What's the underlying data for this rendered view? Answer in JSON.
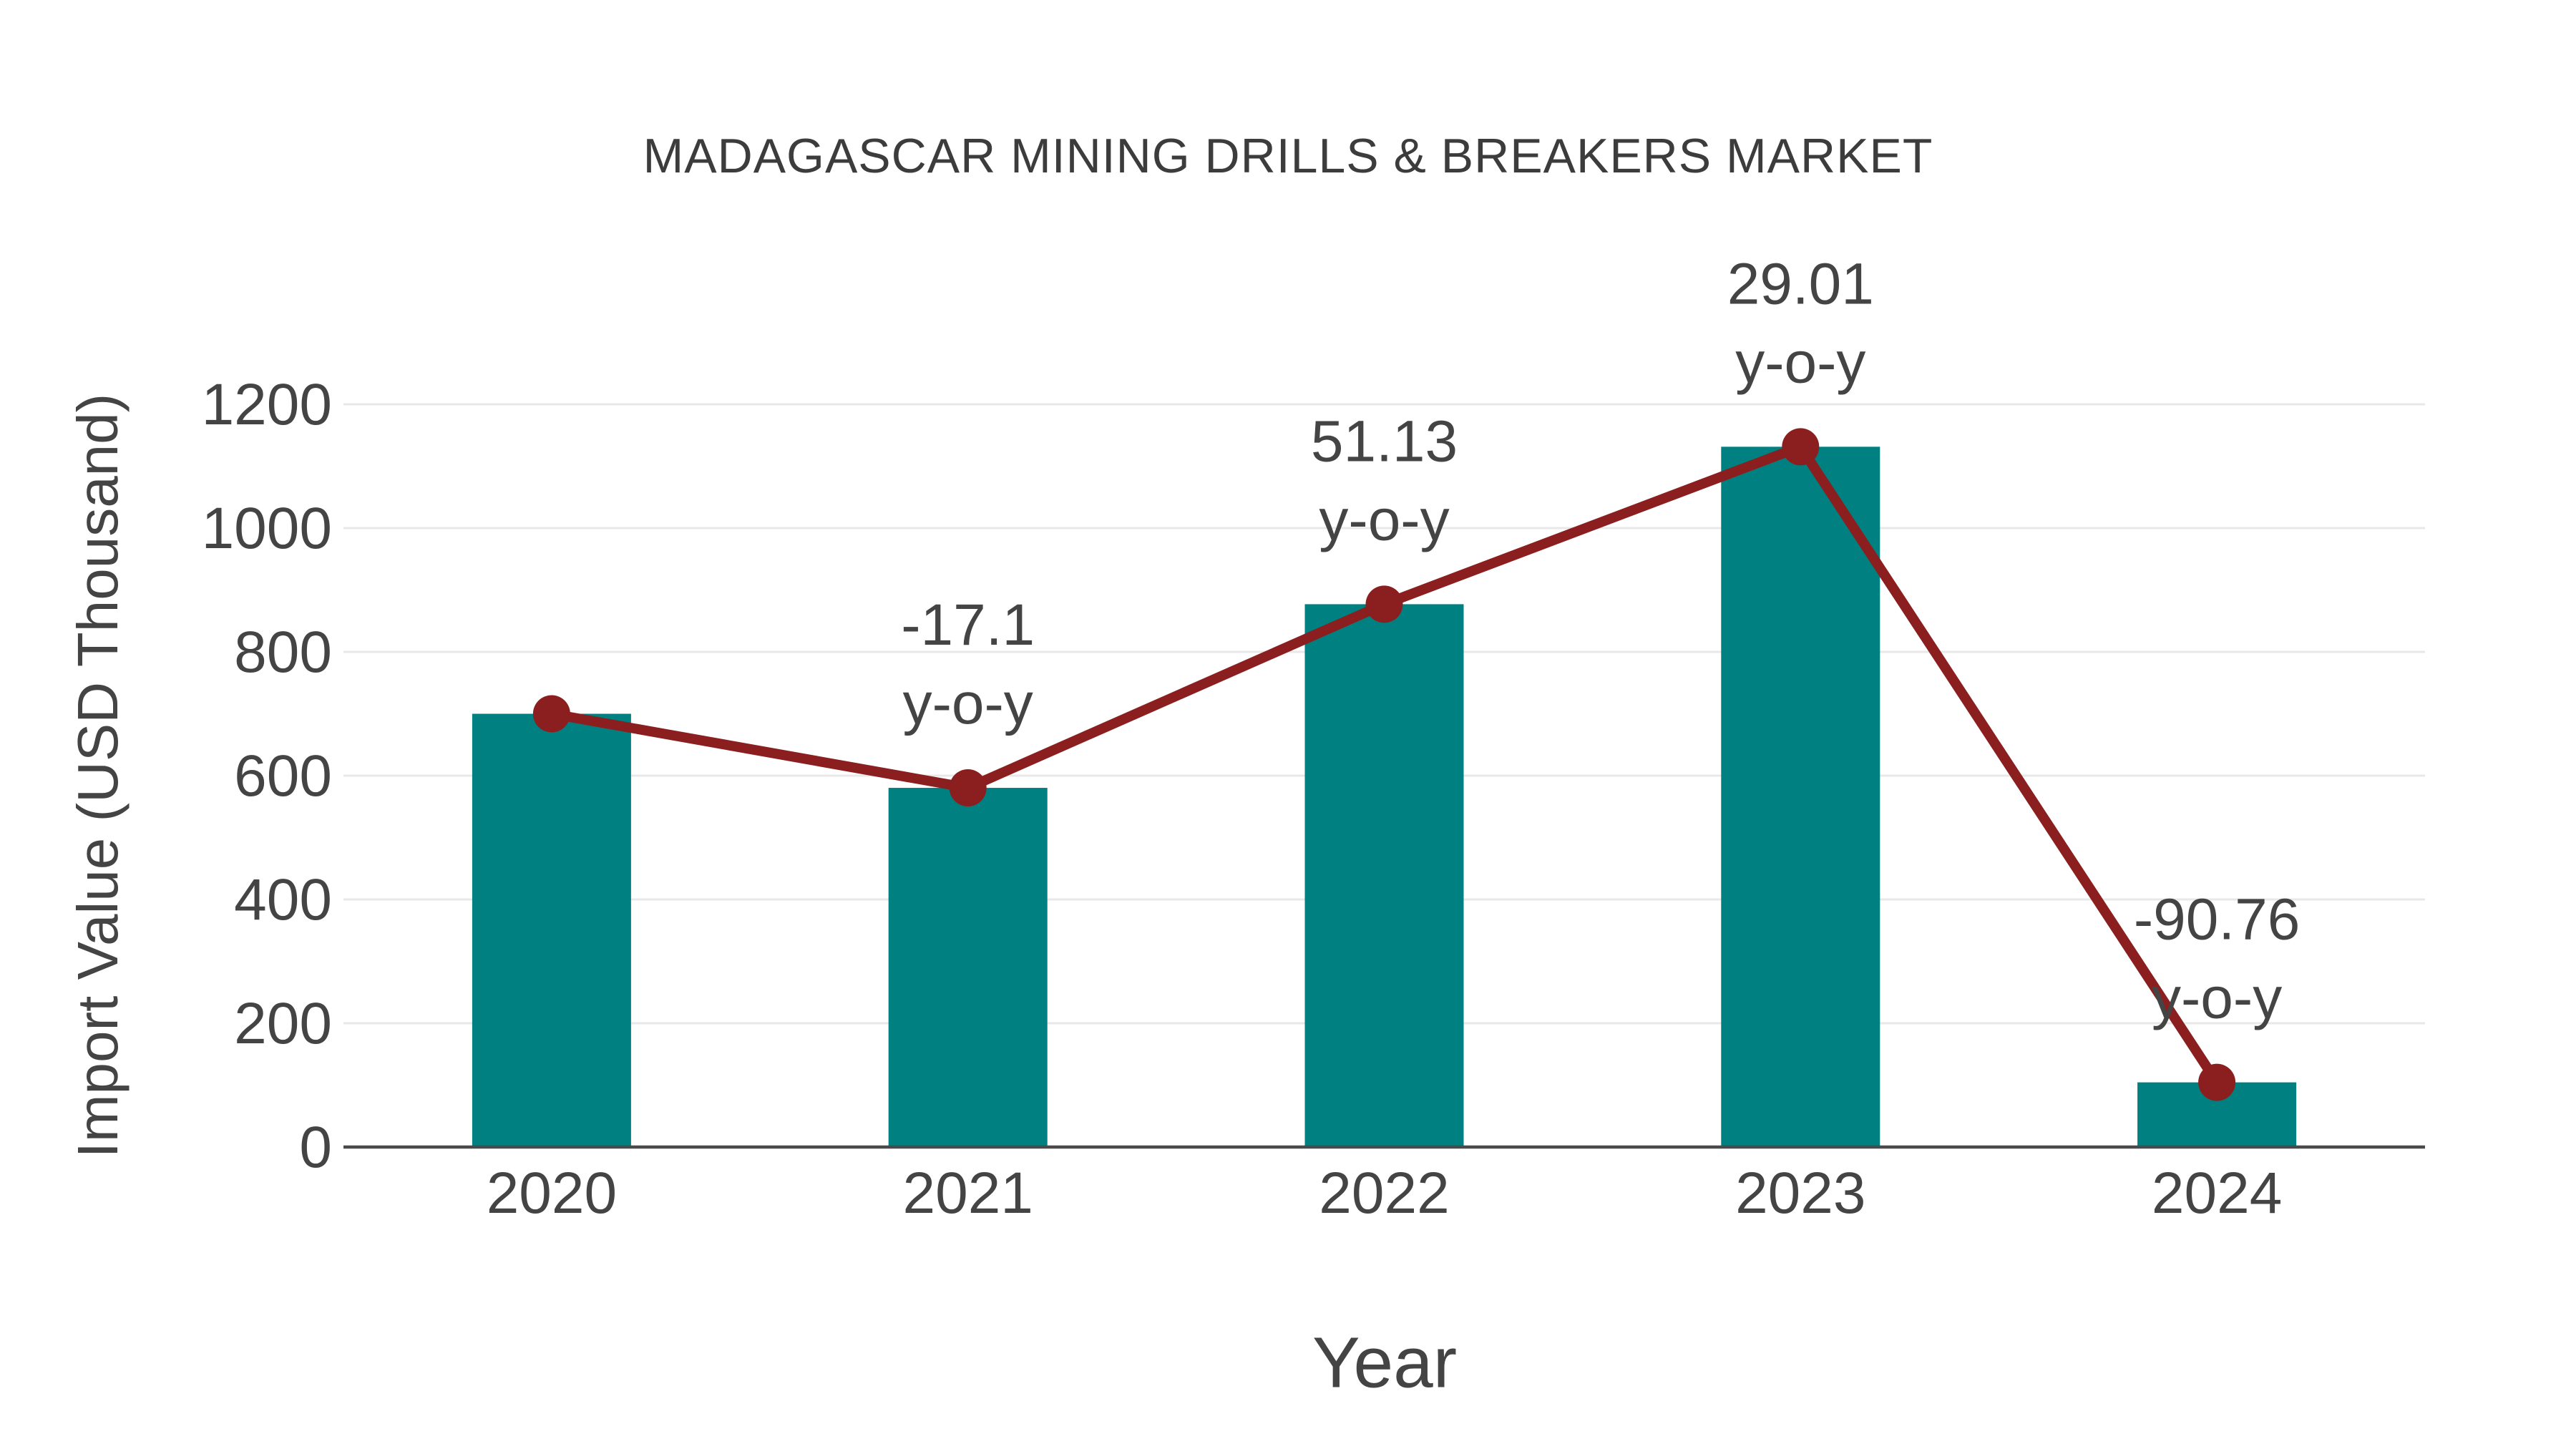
{
  "chart_data": {
    "type": "bar",
    "title": "MADAGASCAR MINING DRILLS & BREAKERS MARKET",
    "xlabel": "Year",
    "ylabel": "Import Value (USD Thousand)",
    "categories": [
      "2020",
      "2021",
      "2022",
      "2023",
      "2024"
    ],
    "series": [
      {
        "name": "Import Value",
        "type": "bar",
        "values": [
          700,
          580.3,
          877,
          1131.4,
          104.5
        ]
      },
      {
        "name": "Trend",
        "type": "line",
        "values": [
          700,
          580.3,
          877,
          1131.4,
          104.5
        ]
      }
    ],
    "annotations": [
      {
        "category": "2021",
        "value": "-17.1",
        "suffix": "y-o-y"
      },
      {
        "category": "2022",
        "value": "51.13",
        "suffix": "y-o-y"
      },
      {
        "category": "2023",
        "value": "29.01",
        "suffix": "y-o-y"
      },
      {
        "category": "2024",
        "value": "-90.76",
        "suffix": "y-o-y"
      }
    ],
    "yticks": [
      0,
      200,
      400,
      600,
      800,
      1000,
      1200
    ],
    "ylim": [
      0,
      1200
    ],
    "grid": true,
    "legend_position": "none",
    "colors": {
      "bar": "#008080",
      "line": "#8B1E1E",
      "marker": "#8B1E1E",
      "text": "#444444",
      "title": "#3C3C3C",
      "grid": "#E8E8E8",
      "axis": "#4A4A4A",
      "background": "#FFFFFF"
    }
  }
}
